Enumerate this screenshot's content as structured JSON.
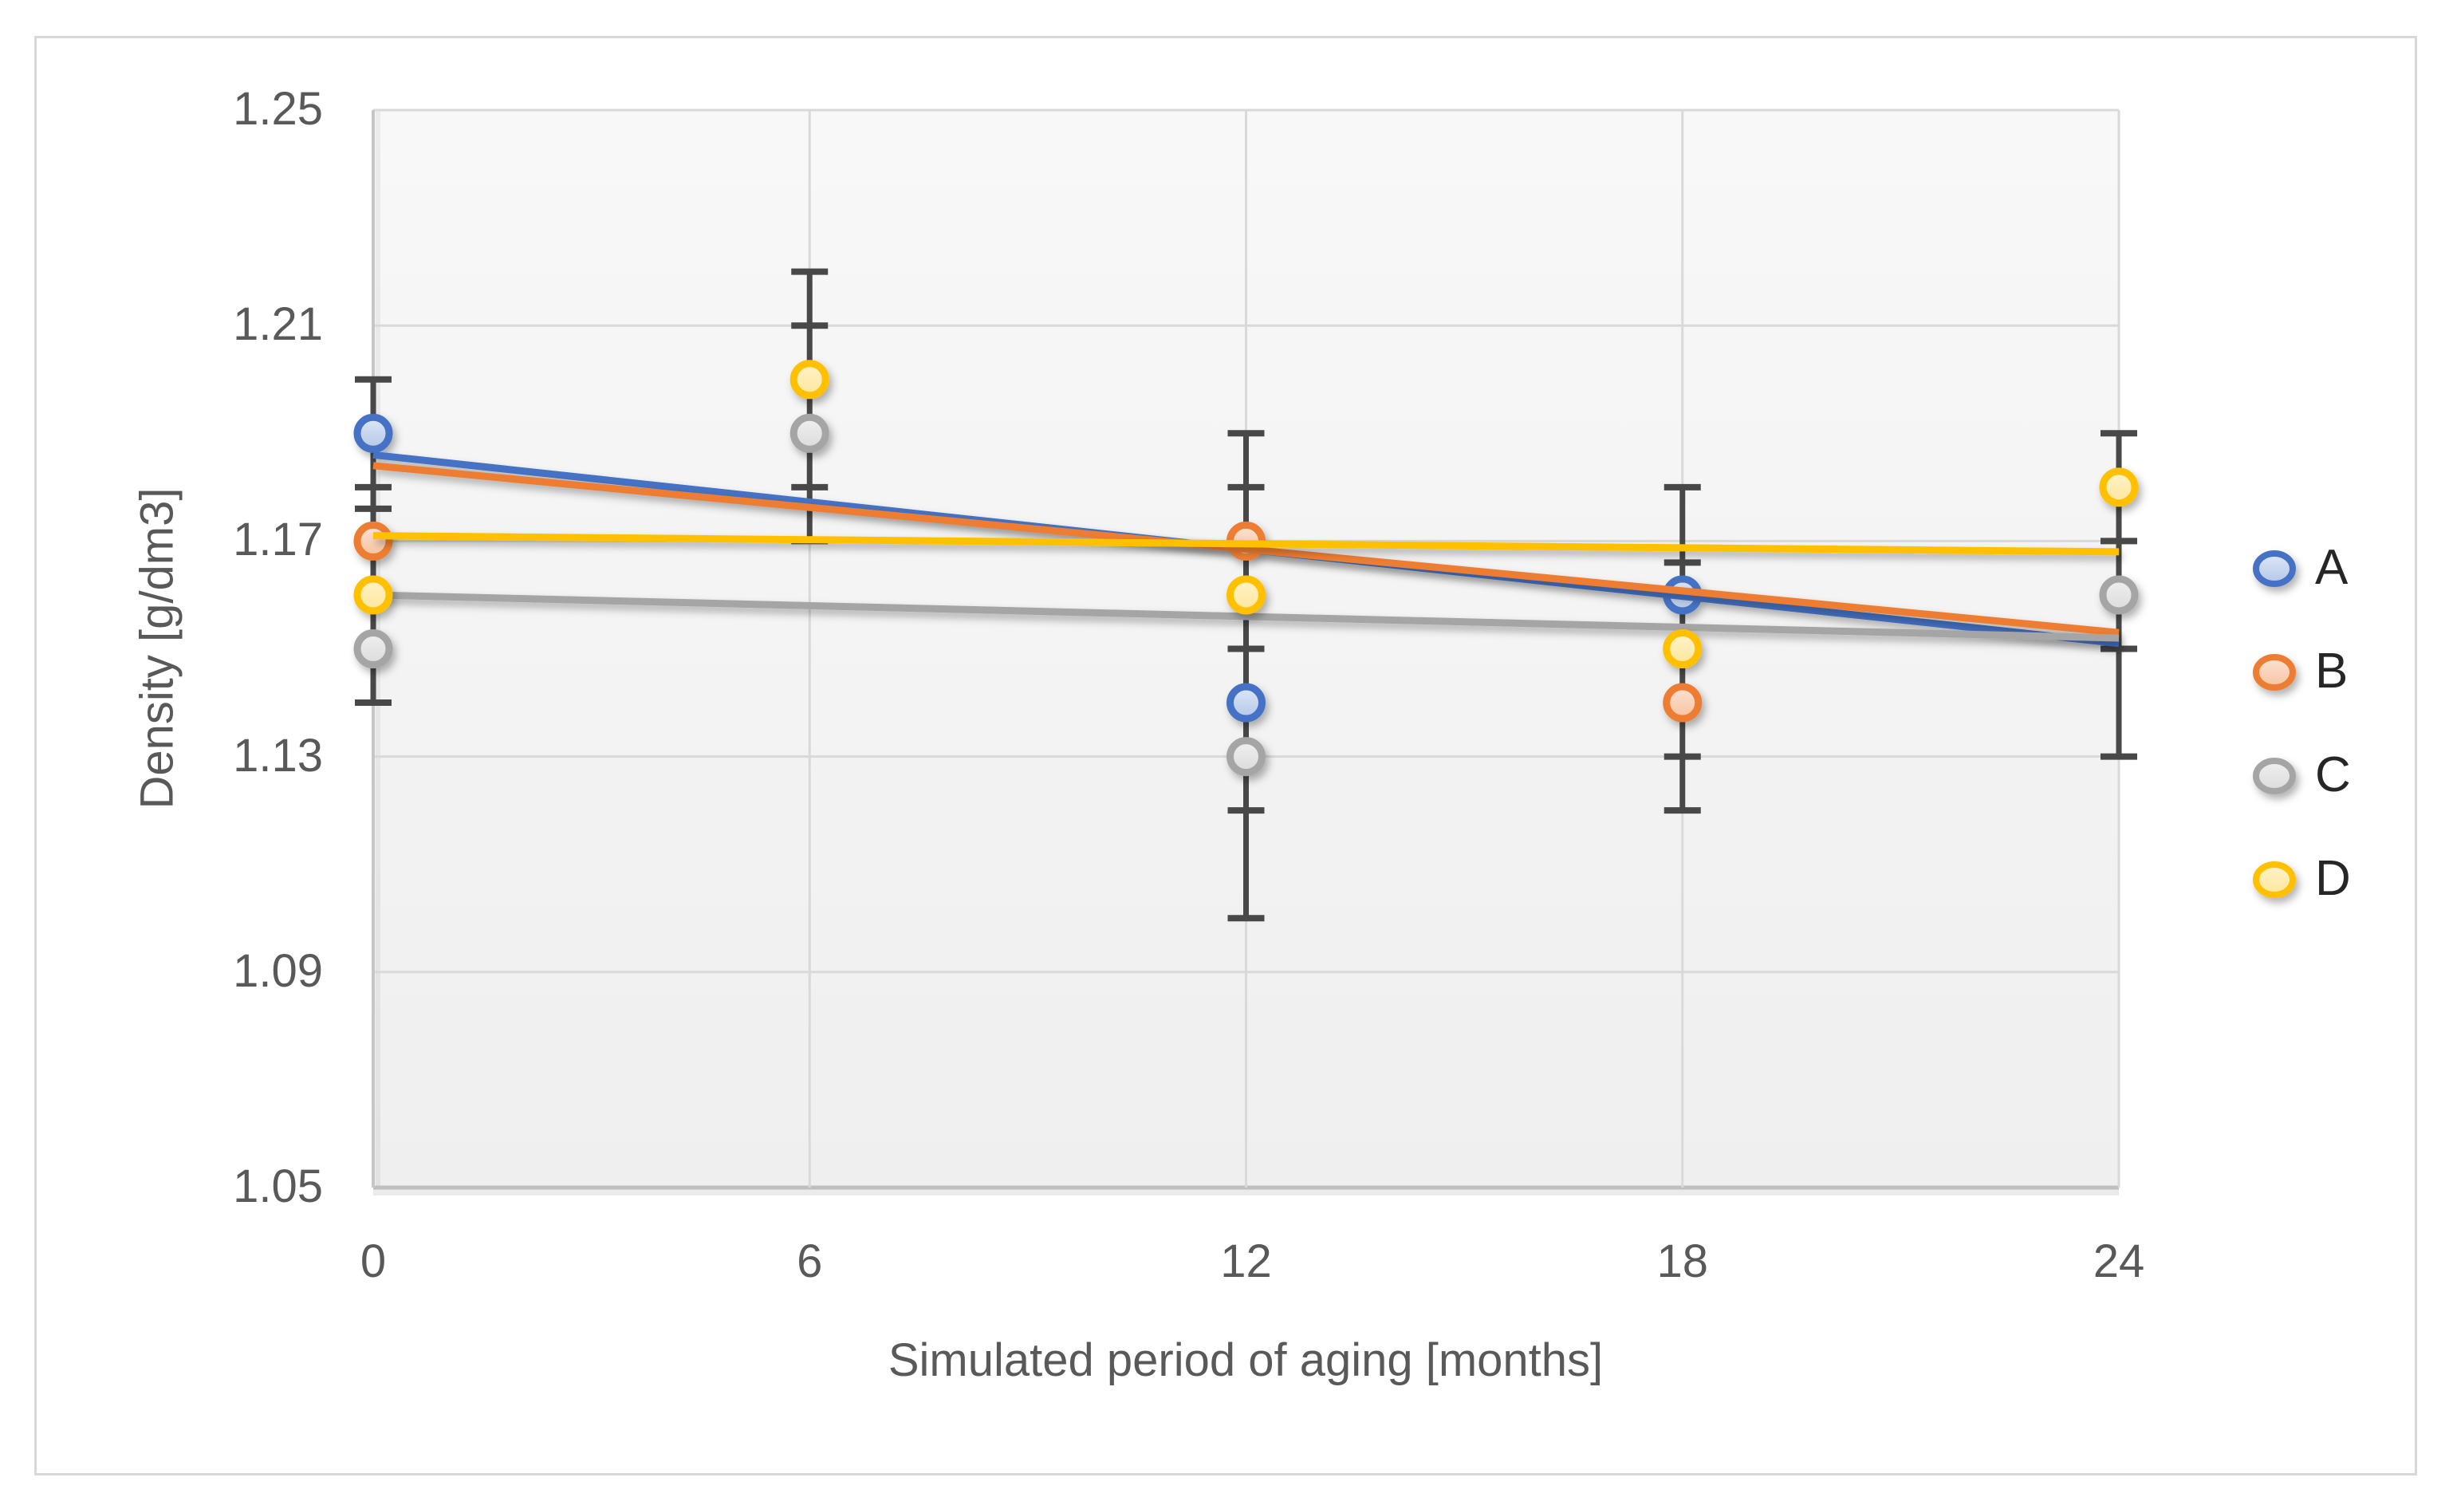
{
  "chart_data": {
    "type": "scatter",
    "title": "",
    "xlabel": "Simulated period of aging [months]",
    "ylabel": "Density [g/dm3]",
    "xlim": [
      0,
      24
    ],
    "ylim": [
      1.05,
      1.25
    ],
    "x_ticks": [
      "0",
      "6",
      "12",
      "18",
      "24"
    ],
    "y_ticks": [
      "1.25",
      "1.21",
      "1.17",
      "1.13",
      "1.09",
      "1.05"
    ],
    "grid": true,
    "legend_position": "right",
    "series": [
      {
        "name": "A",
        "color": "#4472C4",
        "fill_light": "#DDE7F7",
        "fill_dark": "#B4C7E7",
        "points": [
          {
            "x": 0,
            "y": 1.19
          },
          {
            "x": 12,
            "y": 1.14
          },
          {
            "x": 18,
            "y": 1.16
          }
        ],
        "trend": {
          "start": [
            0,
            1.186
          ],
          "end": [
            24,
            1.151
          ]
        }
      },
      {
        "name": "B",
        "color": "#ED7D31",
        "fill_light": "#FBE2D3",
        "fill_dark": "#F8C3A0",
        "points": [
          {
            "x": 0,
            "y": 1.17
          },
          {
            "x": 12,
            "y": 1.17
          },
          {
            "x": 18,
            "y": 1.14
          }
        ],
        "trend": {
          "start": [
            0,
            1.184
          ],
          "end": [
            24,
            1.153
          ]
        }
      },
      {
        "name": "C",
        "color": "#A5A5A5",
        "fill_light": "#F0F0F0",
        "fill_dark": "#DBDBDB",
        "points": [
          {
            "x": 0,
            "y": 1.15
          },
          {
            "x": 6,
            "y": 1.19
          },
          {
            "x": 12,
            "y": 1.13
          },
          {
            "x": 24,
            "y": 1.16
          }
        ],
        "trend": {
          "start": [
            0,
            1.16
          ],
          "end": [
            24,
            1.152
          ]
        }
      },
      {
        "name": "D",
        "color": "#FFC000",
        "fill_light": "#FFF3CC",
        "fill_dark": "#FFE699",
        "points": [
          {
            "x": 0,
            "y": 1.16
          },
          {
            "x": 6,
            "y": 1.2
          },
          {
            "x": 12,
            "y": 1.16
          },
          {
            "x": 18,
            "y": 1.15
          },
          {
            "x": 24,
            "y": 1.18
          }
        ],
        "trend": {
          "start": [
            0,
            1.171
          ],
          "end": [
            24,
            1.168
          ]
        }
      }
    ],
    "error_bars": [
      {
        "x": 0,
        "lo": 1.14,
        "hi": 1.2,
        "caps": [
          1.2,
          1.18,
          1.176,
          1.14
        ]
      },
      {
        "x": 6,
        "lo": 1.17,
        "hi": 1.22,
        "caps": [
          1.22,
          1.21,
          1.18,
          1.17
        ]
      },
      {
        "x": 12,
        "lo": 1.1,
        "hi": 1.19,
        "caps": [
          1.19,
          1.18,
          1.15,
          1.12,
          1.1
        ]
      },
      {
        "x": 18,
        "lo": 1.12,
        "hi": 1.18,
        "caps": [
          1.18,
          1.166,
          1.13,
          1.12
        ]
      },
      {
        "x": 24,
        "lo": 1.13,
        "hi": 1.19,
        "caps": [
          1.19,
          1.17,
          1.15,
          1.13
        ]
      }
    ],
    "colors": {
      "gridline": "#d9d9d9",
      "axis_line": "#bfbfbf",
      "error_bar": "#484848",
      "tick_text": "#595959",
      "legend_text": "#262626",
      "plot_bg_top": "#f8f8f8",
      "plot_bg_bottom": "#efefef"
    }
  }
}
